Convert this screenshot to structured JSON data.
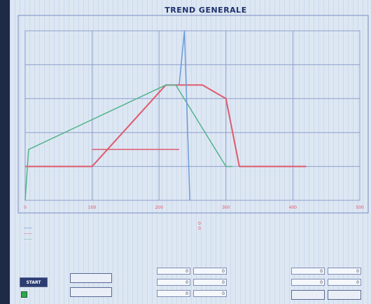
{
  "title": "TREND GENERALE",
  "chart_data": {
    "type": "line",
    "title": "TREND GENERALE",
    "x_ticks": [
      "0",
      "100",
      "200",
      "300",
      "400",
      "500"
    ],
    "xlim": [
      0,
      500
    ],
    "ylim": [
      0,
      100
    ],
    "grid": true,
    "series": [
      {
        "color": "#e05a6a",
        "x": [
          0,
          10,
          100,
          210,
          220,
          265,
          300,
          320,
          420
        ],
        "y": [
          20,
          20,
          20,
          68,
          68,
          68,
          60,
          20,
          20
        ]
      },
      {
        "color": "#4fb58a",
        "x": [
          0,
          5,
          210,
          225,
          300,
          310
        ],
        "y": [
          0,
          30,
          68,
          68,
          20,
          20
        ]
      },
      {
        "color": "#e05a6a",
        "x": [
          100,
          230
        ],
        "y": [
          30,
          30
        ]
      },
      {
        "color": "#6b9bd8",
        "x": [
          230,
          238,
          246
        ],
        "y": [
          68,
          100,
          0
        ]
      }
    ]
  },
  "legend": {
    "entries": [
      {
        "label": "——",
        "color": "#3b6fd0"
      },
      {
        "label": "——",
        "color": "#e0566a"
      },
      {
        "label": "——",
        "color": "#4fb58a"
      }
    ]
  },
  "panel": {
    "mid_values": [
      "0",
      "0"
    ],
    "col_headers": [
      "",
      "",
      "",
      ""
    ],
    "boxes": [
      "0",
      "0",
      "0",
      "0",
      "0",
      "0",
      "0",
      "0",
      "0",
      "0",
      "0",
      "0"
    ],
    "start_label": "START",
    "bottom_label": "",
    "buttons": [
      "",
      "",
      "",
      ""
    ]
  }
}
